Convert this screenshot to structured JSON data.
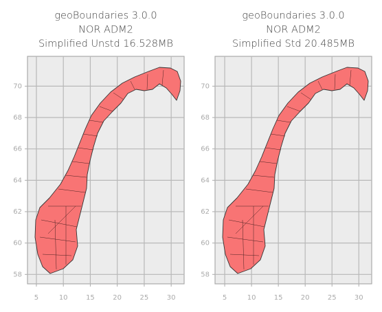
{
  "chart_data": [
    {
      "type": "map",
      "title": [
        "geoBoundaries 3.0.0",
        "NOR ADM2",
        "Simplified Unstd 16.528MB"
      ],
      "xlim": [
        3.35,
        32.4
      ],
      "ylim": [
        57.4,
        71.9
      ],
      "xticks": [
        5,
        10,
        15,
        20,
        25,
        30
      ],
      "yticks": [
        58,
        60,
        62,
        64,
        66,
        68,
        70
      ],
      "grid": true,
      "color": "#f87474"
    },
    {
      "type": "map",
      "title": [
        "geoBoundaries 3.0.0",
        "NOR ADM2",
        "Simplified Std 20.485MB"
      ],
      "xlim": [
        3.2,
        32.4
      ],
      "ylim": [
        57.4,
        71.9
      ],
      "xticks": [
        5,
        10,
        15,
        20,
        25,
        30
      ],
      "yticks": [
        58,
        60,
        62,
        64,
        66,
        68,
        70
      ],
      "grid": true,
      "color": "#f87474"
    }
  ]
}
